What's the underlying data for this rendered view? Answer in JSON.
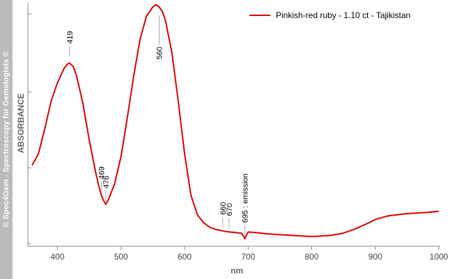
{
  "sidebar": {
    "text": "© Spec4Gem - Spectroscopy for Gemologists ©",
    "bg_color": "#bbbbbb"
  },
  "chart_data": {
    "type": "line",
    "title": "",
    "xlabel": "nm",
    "ylabel": "ABSORBANCE",
    "xlim": [
      360,
      1000
    ],
    "ylim": [
      0,
      1
    ],
    "xticks": [
      400,
      500,
      600,
      700,
      800,
      900,
      1000
    ],
    "yticks_labeled": false,
    "grid": false,
    "legend": {
      "placement": "top-right",
      "entries": [
        "Pinkish-red ruby - 1.10 ct - Tajikistan"
      ]
    },
    "series": [
      {
        "name": "Pinkish-red ruby - 1.10 ct - Tajikistan",
        "color": "#dd0000",
        "x": [
          360,
          370,
          380,
          390,
          400,
          410,
          415,
          419,
          425,
          430,
          440,
          450,
          460,
          465,
          469,
          472,
          476,
          480,
          490,
          500,
          510,
          520,
          530,
          540,
          550,
          555,
          560,
          565,
          570,
          580,
          590,
          600,
          610,
          620,
          630,
          640,
          650,
          660,
          665,
          670,
          680,
          685,
          690,
          693,
          695,
          697,
          700,
          710,
          720,
          730,
          750,
          770,
          800,
          830,
          850,
          870,
          890,
          900,
          920,
          950,
          980,
          1000
        ],
        "y": [
          0.31,
          0.36,
          0.47,
          0.59,
          0.67,
          0.73,
          0.75,
          0.755,
          0.74,
          0.7,
          0.58,
          0.42,
          0.28,
          0.22,
          0.18,
          0.16,
          0.14,
          0.16,
          0.23,
          0.35,
          0.52,
          0.7,
          0.86,
          0.96,
          1.0,
          1.01,
          1.0,
          0.98,
          0.94,
          0.8,
          0.59,
          0.36,
          0.18,
          0.095,
          0.06,
          0.04,
          0.03,
          0.025,
          0.022,
          0.02,
          0.018,
          0.016,
          0.014,
          0.0,
          -0.01,
          0.005,
          0.02,
          0.018,
          0.015,
          0.012,
          0.008,
          0.005,
          0.0,
          0.005,
          0.015,
          0.035,
          0.06,
          0.075,
          0.09,
          0.1,
          0.105,
          0.11
        ]
      }
    ],
    "annotations": [
      {
        "x": 419,
        "label": "419"
      },
      {
        "x": 469,
        "label": "469"
      },
      {
        "x": 476,
        "label": "476"
      },
      {
        "x": 560,
        "label": "560"
      },
      {
        "x": 660,
        "label": "660"
      },
      {
        "x": 670,
        "label": "670"
      },
      {
        "x": 695,
        "label": "695 : emission"
      }
    ]
  }
}
